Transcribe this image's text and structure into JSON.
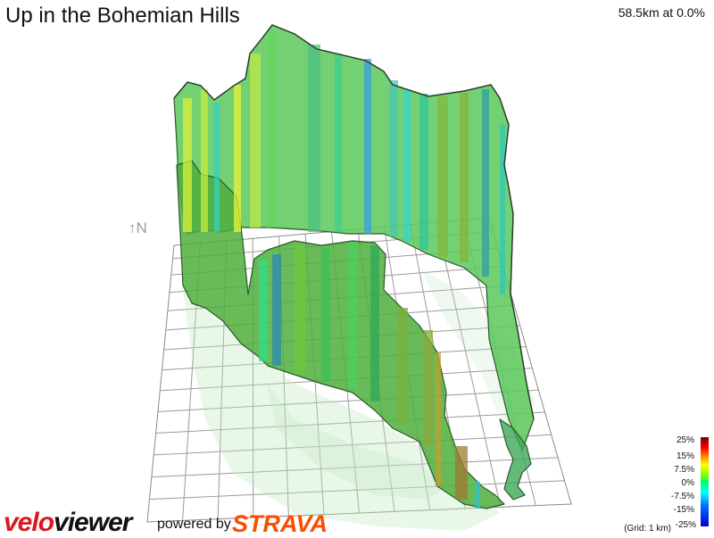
{
  "title": "Up in the Bohemian Hills",
  "readout": "58.5km at 0.0%",
  "compass": {
    "icon": "north-arrow-icon",
    "label": "↑N"
  },
  "branding": {
    "velo": "velo",
    "viewer": "viewer",
    "powered_by": "powered by",
    "strava": "STRAVA",
    "velo_color": "#d71920",
    "strava_color": "#fc4c02"
  },
  "legend": {
    "labels": [
      "25%",
      "15%",
      "7.5%",
      "0%",
      "-7.5%",
      "-15%",
      "-25%"
    ],
    "grid_note": "(Grid: 1 km)"
  }
}
